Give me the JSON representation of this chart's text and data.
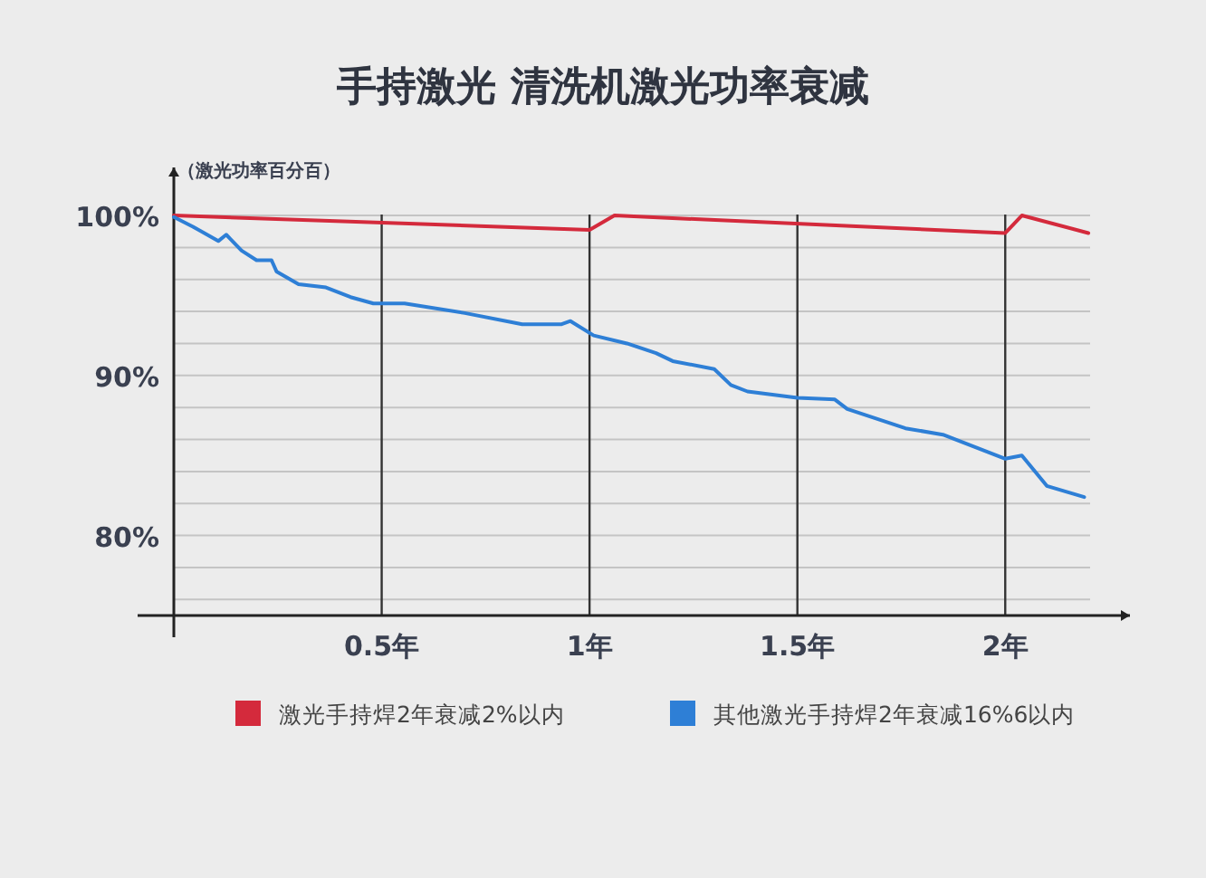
{
  "chart_data": {
    "type": "line",
    "title": "手持激光 清洗机激光功率衰减",
    "ylabel": "（激光功率百分百）",
    "xlim": [
      0,
      2.3
    ],
    "ylim": [
      75,
      103
    ],
    "xticks": [
      {
        "value": 0.5,
        "label": "0.5年"
      },
      {
        "value": 1,
        "label": "1年"
      },
      {
        "value": 1.5,
        "label": "1.5年"
      },
      {
        "value": 2,
        "label": "2年"
      }
    ],
    "yticks": [
      {
        "value": 76,
        "label": null
      },
      {
        "value": 78,
        "label": null
      },
      {
        "value": 80,
        "label": "80%"
      },
      {
        "value": 82,
        "label": null
      },
      {
        "value": 84,
        "label": null
      },
      {
        "value": 86,
        "label": null
      },
      {
        "value": 88,
        "label": null
      },
      {
        "value": 90,
        "label": "90%"
      },
      {
        "value": 92,
        "label": null
      },
      {
        "value": 94,
        "label": null
      },
      {
        "value": 96,
        "label": null
      },
      {
        "value": 98,
        "label": null
      },
      {
        "value": 100,
        "label": "100%"
      }
    ],
    "grid": true,
    "legend": "bottom",
    "marker": "none",
    "line_style": "solid",
    "series": [
      {
        "name": "激光手持焊2年衰减2%以内",
        "color": "#d42a3c",
        "x": [
          0,
          1.0,
          1.06,
          2.0,
          2.04,
          2.2
        ],
        "values": [
          100,
          99.1,
          100,
          98.9,
          100,
          98.9
        ]
      },
      {
        "name": "其他激光手持焊2年衰减16%6以内",
        "color": "#2e7fd6",
        "x": [
          0,
          0.046,
          0.107,
          0.126,
          0.163,
          0.199,
          0.235,
          0.247,
          0.3,
          0.366,
          0.425,
          0.48,
          0.555,
          0.7,
          0.838,
          0.933,
          0.954,
          1.01,
          1.09,
          1.16,
          1.2,
          1.3,
          1.34,
          1.38,
          1.5,
          1.59,
          1.62,
          1.76,
          1.85,
          2.0,
          2.04,
          2.1,
          2.19
        ],
        "values": [
          99.9,
          99.3,
          98.4,
          98.8,
          97.8,
          97.2,
          97.2,
          96.5,
          95.7,
          95.5,
          94.9,
          94.5,
          94.5,
          93.9,
          93.2,
          93.2,
          93.4,
          92.5,
          92.0,
          91.4,
          90.9,
          90.4,
          89.4,
          89.0,
          88.6,
          88.5,
          87.9,
          86.7,
          86.3,
          84.8,
          85.0,
          83.1,
          82.4
        ]
      }
    ]
  }
}
